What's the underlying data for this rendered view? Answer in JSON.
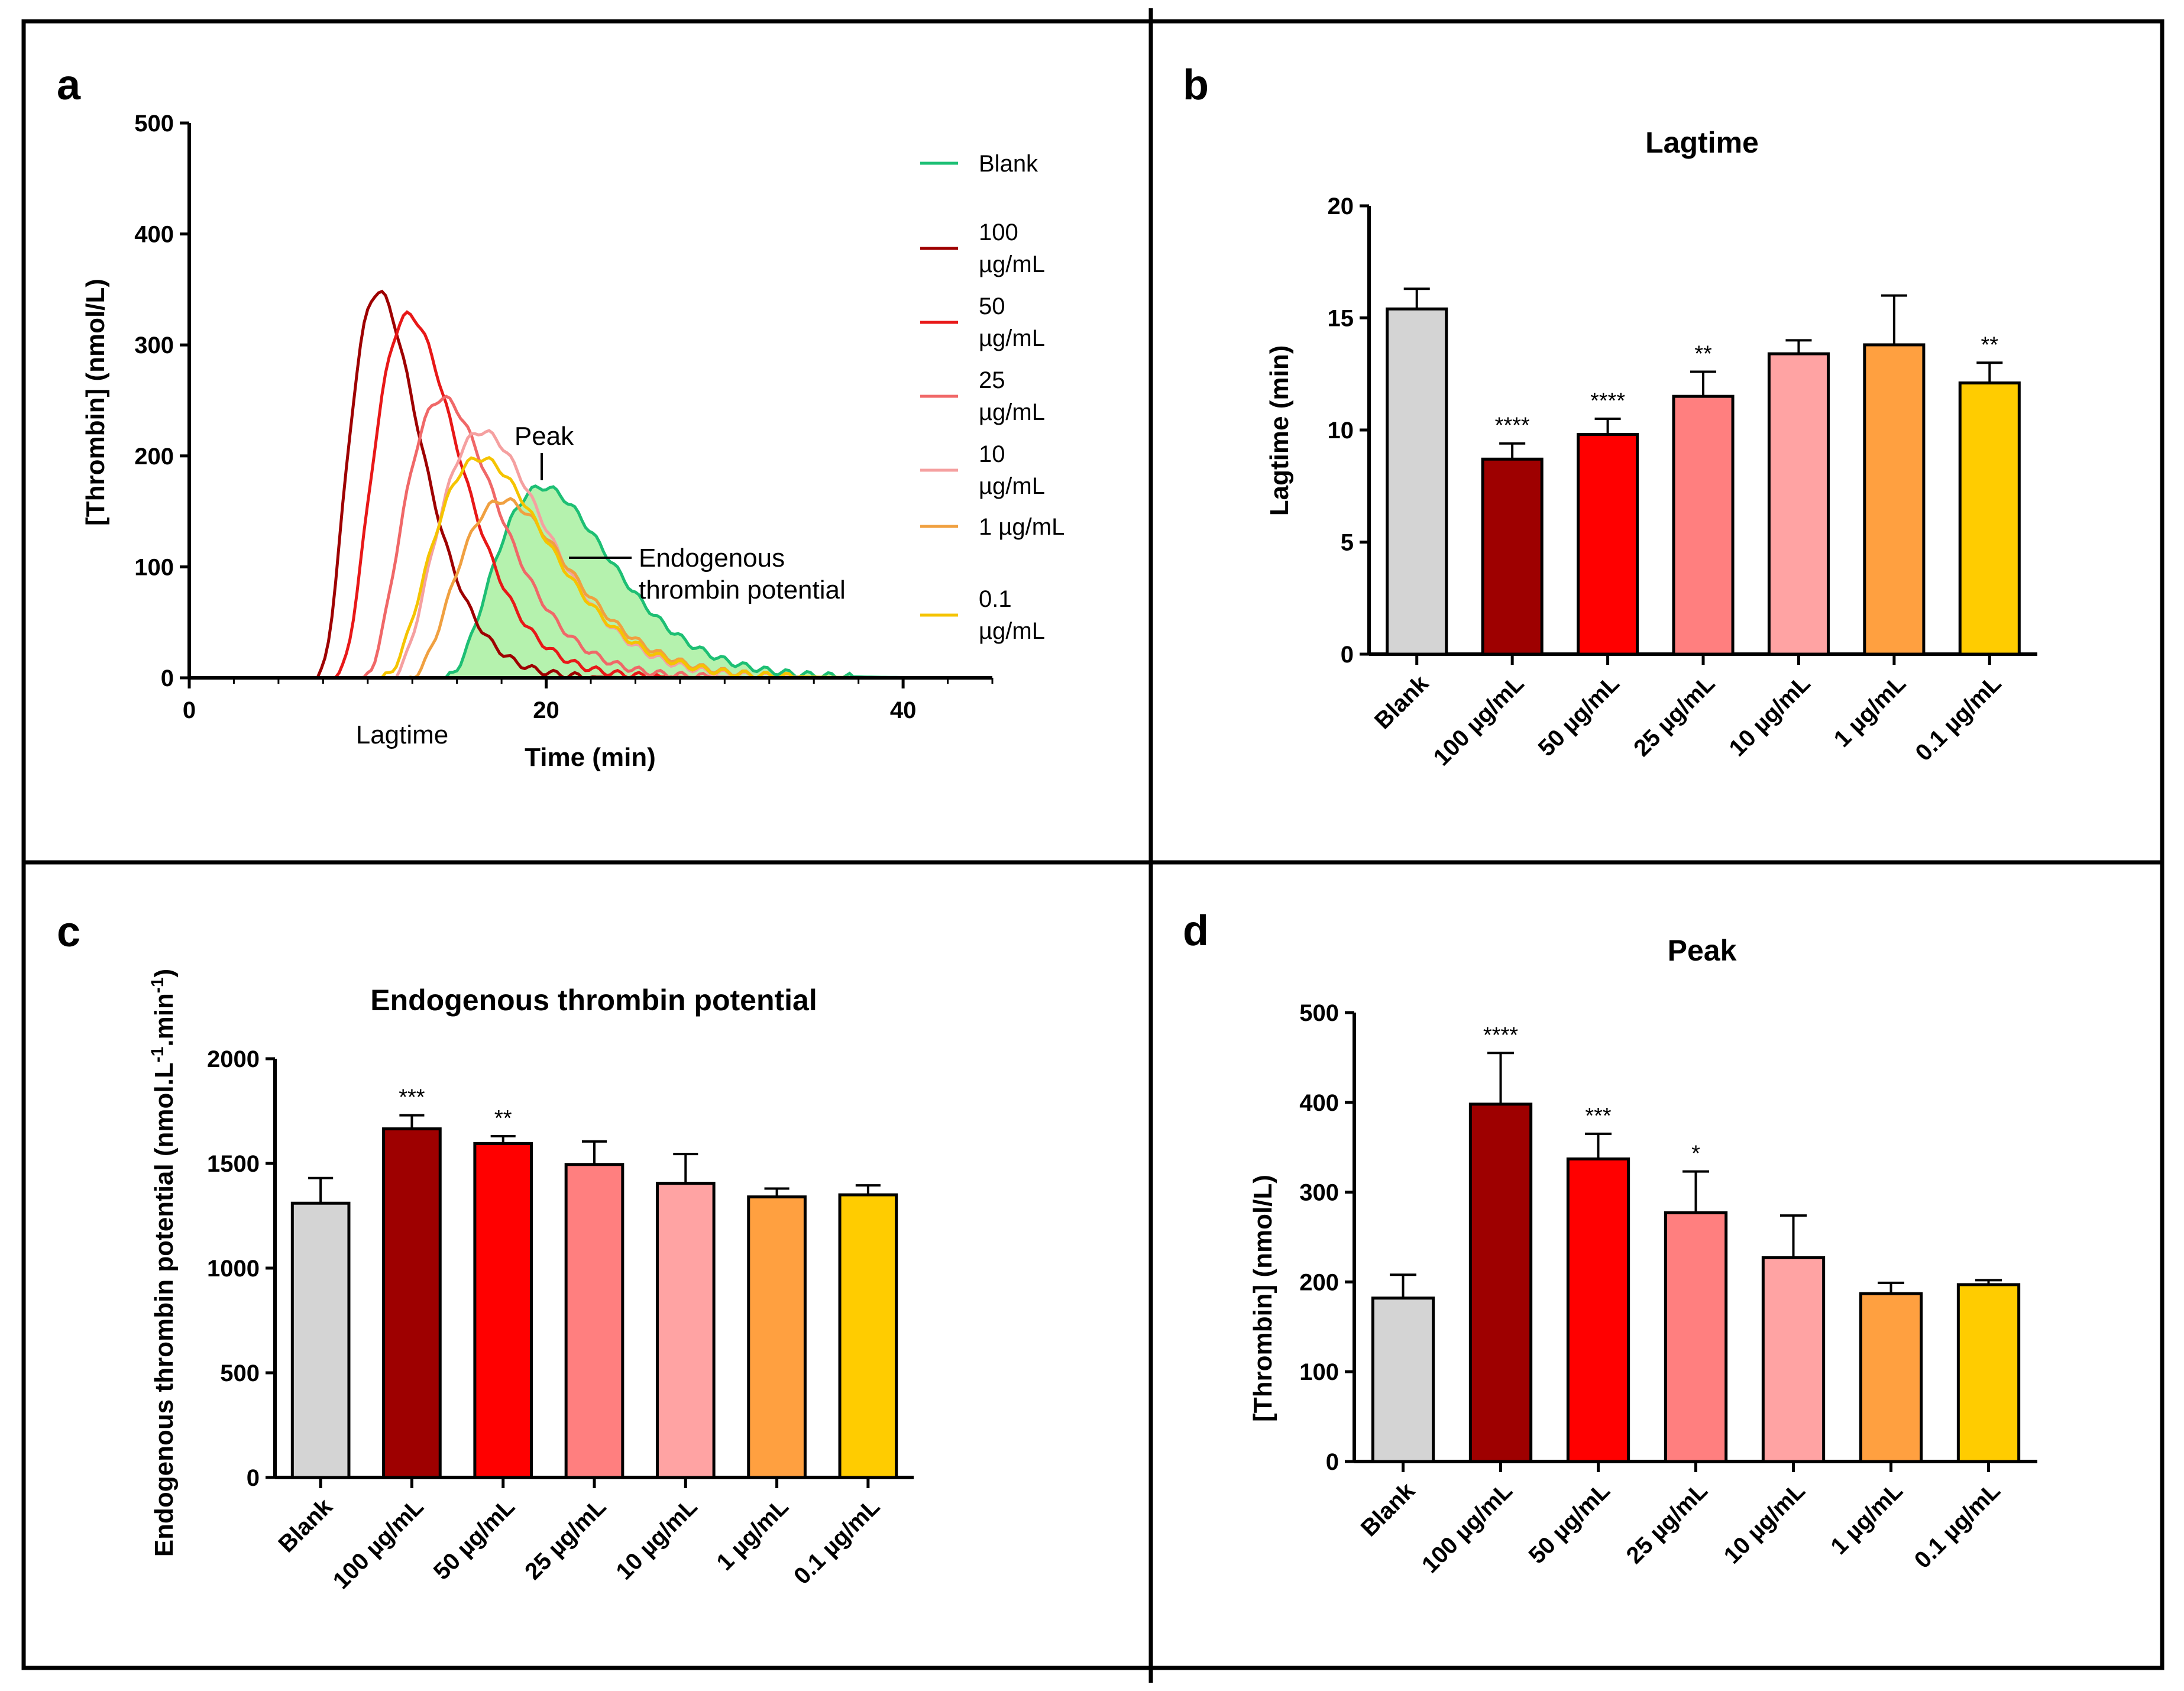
{
  "panels": {
    "a": {
      "label": "a"
    },
    "b": {
      "label": "b"
    },
    "c": {
      "label": "c"
    },
    "d": {
      "label": "d"
    }
  },
  "colors": {
    "Blank": "#d4d4d4",
    "100 µg/mL": "#9e0000",
    "50 µg/mL": "#ff0000",
    "25 µg/mL": "#ff7f7f",
    "10 µg/mL": "#ffa3a3",
    "1 µg/mL": "#ffa040",
    "0.1 µg/mL": "#ffcc00",
    "blank_line": "#1dbf74",
    "blank_fill": "#a8f0a0",
    "line_100": "#9e0000",
    "line_50": "#e81818",
    "line_25": "#f06868",
    "line_10": "#f5a0a0",
    "line_1": "#f0a040",
    "line_01": "#f5c400"
  },
  "chart_data": [
    {
      "id": "a",
      "type": "line",
      "xlabel": "Time (min)",
      "ylabel": "[Thrombin] (nmol/L)",
      "xlim": [
        0,
        45
      ],
      "ylim": [
        0,
        500
      ],
      "xticks": [
        0,
        20,
        40
      ],
      "yticks": [
        0,
        100,
        200,
        300,
        400,
        500
      ],
      "annotations": {
        "peak": "Peak",
        "etp_1": "Endogenous",
        "etp_2": "thrombin potential",
        "lagtime": "Lagtime"
      },
      "series": [
        {
          "name": "Blank",
          "legend": [
            "Blank"
          ],
          "color_key": "blank_line",
          "filled": true,
          "onset": 14.0,
          "peak_x": 19.8,
          "peak_y": 172
        },
        {
          "name": "100 µg/mL",
          "legend": [
            "100",
            "µg/mL"
          ],
          "color_key": "line_100",
          "filled": false,
          "onset": 7.0,
          "peak_x": 10.6,
          "peak_y": 348
        },
        {
          "name": "50 µg/mL",
          "legend": [
            "50",
            "µg/mL"
          ],
          "color_key": "line_50",
          "filled": false,
          "onset": 8.0,
          "peak_x": 12.3,
          "peak_y": 327
        },
        {
          "name": "25 µg/mL",
          "legend": [
            "25",
            "µg/mL"
          ],
          "color_key": "line_25",
          "filled": false,
          "onset": 9.5,
          "peak_x": 14.2,
          "peak_y": 252
        },
        {
          "name": "10 µg/mL",
          "legend": [
            "10",
            "µg/mL"
          ],
          "color_key": "line_10",
          "filled": false,
          "onset": 11.0,
          "peak_x": 16.4,
          "peak_y": 222
        },
        {
          "name": "1 µg/mL",
          "legend": [
            "1 µg/mL"
          ],
          "color_key": "line_1",
          "filled": false,
          "onset": 12.0,
          "peak_x": 17.6,
          "peak_y": 160
        },
        {
          "name": "0.1 µg/mL",
          "legend": [
            "0.1",
            "µg/mL"
          ],
          "color_key": "line_01",
          "filled": false,
          "onset": 10.5,
          "peak_x": 16.3,
          "peak_y": 198
        }
      ]
    },
    {
      "id": "b",
      "type": "bar",
      "title": "Lagtime",
      "ylabel": "Lagtime (min)",
      "ylim": [
        0,
        20
      ],
      "yticks": [
        0,
        5,
        10,
        15,
        20
      ],
      "categories": [
        "Blank",
        "100 µg/mL",
        "50 µg/mL",
        "25 µg/mL",
        "10 µg/mL",
        "1 µg/mL",
        "0.1 µg/mL"
      ],
      "values": [
        15.4,
        8.7,
        9.8,
        11.5,
        13.4,
        13.8,
        12.1
      ],
      "errors": [
        0.9,
        0.7,
        0.7,
        1.1,
        0.6,
        2.2,
        0.9
      ],
      "significance": [
        "",
        "****",
        "****",
        "**",
        "",
        "",
        "**"
      ]
    },
    {
      "id": "c",
      "type": "bar",
      "title": "Endogenous thrombin potential",
      "ylabel": "Endogenous thrombin potential (nmol.L",
      "ylabel_sup1": "-1",
      "ylabel_mid": ".min",
      "ylabel_sup2": "-1",
      "ylabel_end": ")",
      "ylim": [
        0,
        2000
      ],
      "yticks": [
        0,
        500,
        1000,
        1500,
        2000
      ],
      "categories": [
        "Blank",
        "100 µg/mL",
        "50 µg/mL",
        "25 µg/mL",
        "10 µg/mL",
        "1 µg/mL",
        "0.1 µg/mL"
      ],
      "values": [
        1310,
        1665,
        1595,
        1495,
        1405,
        1340,
        1350
      ],
      "errors": [
        120,
        65,
        35,
        110,
        140,
        40,
        45
      ],
      "significance": [
        "",
        "***",
        "**",
        "",
        "",
        "",
        ""
      ]
    },
    {
      "id": "d",
      "type": "bar",
      "title": "Peak",
      "ylabel": "[Thrombin] (nmol/L)",
      "ylim": [
        0,
        500
      ],
      "yticks": [
        0,
        100,
        200,
        300,
        400,
        500
      ],
      "categories": [
        "Blank",
        "100 µg/mL",
        "50 µg/mL",
        "25 µg/mL",
        "10 µg/mL",
        "1 µg/mL",
        "0.1 µg/mL"
      ],
      "values": [
        182,
        398,
        337,
        277,
        227,
        187,
        197
      ],
      "errors": [
        26,
        57,
        28,
        46,
        47,
        12,
        5
      ],
      "significance": [
        "",
        "****",
        "***",
        "*",
        "",
        "",
        ""
      ]
    }
  ]
}
